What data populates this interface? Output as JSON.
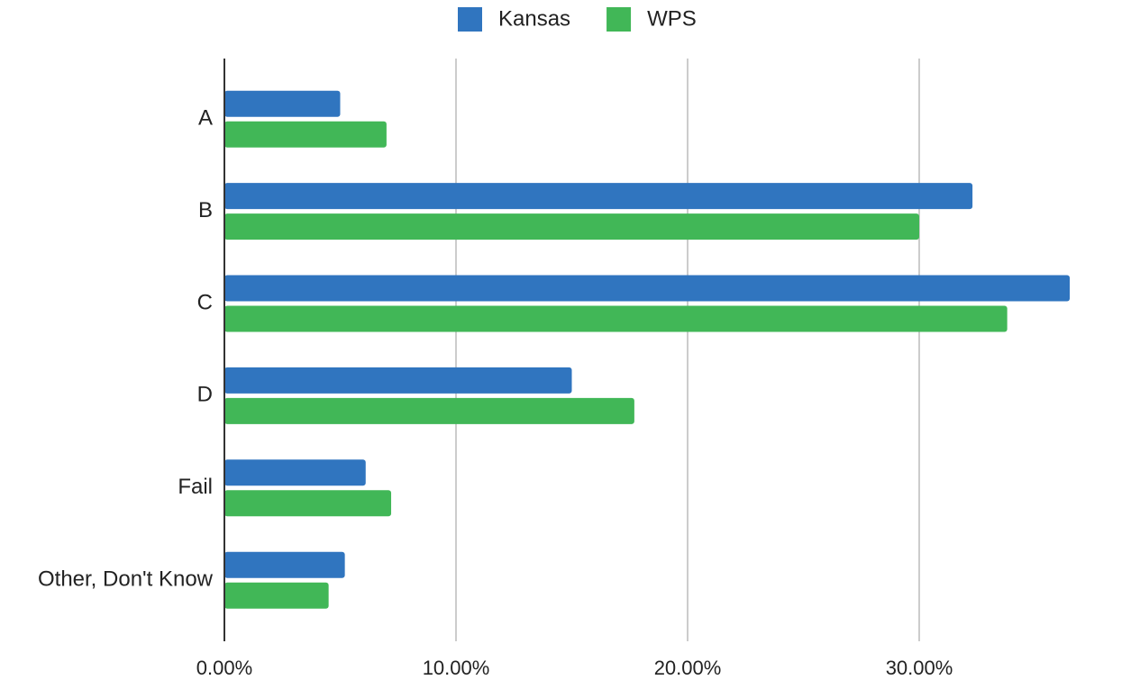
{
  "chart_data": {
    "type": "hbar",
    "categories": [
      "A",
      "B",
      "C",
      "D",
      "Fail",
      "Other, Don't Know"
    ],
    "series": [
      {
        "name": "Kansas",
        "color": "#3075bf",
        "values": [
          5.0,
          32.3,
          36.5,
          15.0,
          6.1,
          5.2
        ]
      },
      {
        "name": "WPS",
        "color": "#41b757",
        "values": [
          7.0,
          30.0,
          33.8,
          17.7,
          7.2,
          4.5
        ]
      }
    ],
    "xlim": [
      0,
      39
    ],
    "xticks": [
      {
        "value": 0,
        "label": "0.00%"
      },
      {
        "value": 10,
        "label": "10.00%"
      },
      {
        "value": 20,
        "label": "20.00%"
      },
      {
        "value": 30,
        "label": "30.00%"
      }
    ],
    "grid": true,
    "legend": "top"
  }
}
